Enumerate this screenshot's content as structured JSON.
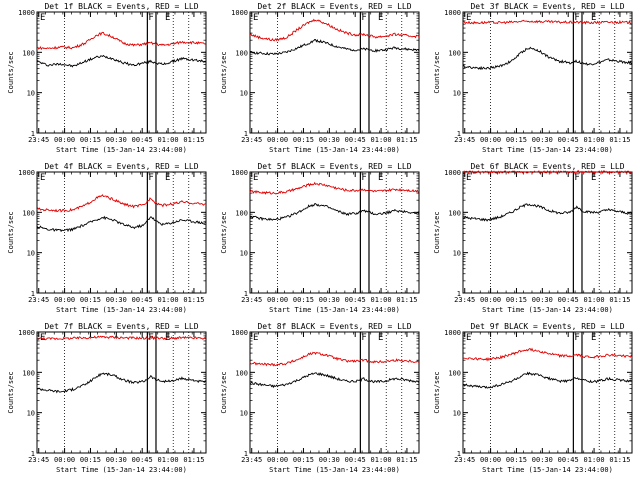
{
  "colors": {
    "events": "#000000",
    "lld": "#e00000",
    "background": "#ffffff"
  },
  "chart_data": [
    {
      "type": "line",
      "title": "Det 1f BLACK = Events, RED = LLD",
      "xlabel": "Start Time (15-Jan-14 23:44:00)",
      "ylabel": "Counts/sec",
      "yscale": "log",
      "ylim": [
        1,
        1000
      ],
      "xlim": [
        "23:44",
        "01:22"
      ],
      "x_ticks": [
        "23:45",
        "00:00",
        "00:15",
        "00:30",
        "00:45",
        "01:00",
        "01:15"
      ],
      "y_ticks": [
        "1",
        "10",
        "100",
        "1000"
      ],
      "annotations": [
        "E",
        "F",
        "E"
      ],
      "series": [
        {
          "name": "Events",
          "x": [
            "23:44",
            "23:50",
            "23:58",
            "00:05",
            "00:12",
            "00:18",
            "00:22",
            "00:28",
            "00:34",
            "00:40",
            "00:46",
            "00:50",
            "00:53",
            "00:57",
            "01:02",
            "01:08",
            "01:14",
            "01:20"
          ],
          "values": [
            60,
            48,
            52,
            45,
            60,
            75,
            80,
            70,
            55,
            48,
            55,
            60,
            55,
            50,
            58,
            70,
            65,
            60
          ]
        },
        {
          "name": "LLD",
          "x": [
            "23:44",
            "23:50",
            "23:58",
            "00:05",
            "00:12",
            "00:18",
            "00:22",
            "00:28",
            "00:34",
            "00:40",
            "00:46",
            "00:50",
            "00:53",
            "00:57",
            "01:02",
            "01:08",
            "01:14",
            "01:20"
          ],
          "values": [
            130,
            125,
            135,
            130,
            170,
            260,
            300,
            240,
            170,
            150,
            160,
            170,
            160,
            150,
            160,
            180,
            175,
            165
          ]
        }
      ]
    },
    {
      "type": "line",
      "title": "Det 2f BLACK = Events, RED = LLD",
      "xlabel": "Start Time (15-Jan-14 23:44:00)",
      "ylabel": "Counts/sec",
      "yscale": "log",
      "ylim": [
        1,
        1000
      ],
      "xlim": [
        "23:44",
        "01:22"
      ],
      "x_ticks": [
        "23:45",
        "00:00",
        "00:15",
        "00:30",
        "00:45",
        "01:00",
        "01:15"
      ],
      "y_ticks": [
        "1",
        "10",
        "100",
        "1000"
      ],
      "annotations": [
        "E",
        "F",
        "E"
      ],
      "series": [
        {
          "name": "Events",
          "x": [
            "23:44",
            "23:50",
            "23:58",
            "00:05",
            "00:12",
            "00:18",
            "00:22",
            "00:28",
            "00:34",
            "00:40",
            "00:46",
            "00:50",
            "00:53",
            "00:57",
            "01:02",
            "01:08",
            "01:14",
            "01:20"
          ],
          "values": [
            100,
            95,
            90,
            100,
            130,
            170,
            200,
            170,
            140,
            120,
            115,
            120,
            115,
            110,
            115,
            130,
            120,
            115
          ]
        },
        {
          "name": "LLD",
          "x": [
            "23:44",
            "23:50",
            "23:58",
            "00:05",
            "00:12",
            "00:18",
            "00:22",
            "00:28",
            "00:34",
            "00:40",
            "00:46",
            "00:50",
            "00:53",
            "00:57",
            "01:02",
            "01:08",
            "01:14",
            "01:20"
          ],
          "values": [
            280,
            230,
            200,
            230,
            380,
            550,
            650,
            520,
            380,
            300,
            270,
            280,
            260,
            240,
            250,
            280,
            260,
            250
          ]
        }
      ]
    },
    {
      "type": "line",
      "title": "Det 3f BLACK = Events, RED = LLD",
      "xlabel": "Start Time (15-Jan-14 23:44:00)",
      "ylabel": "Counts/sec",
      "yscale": "log",
      "ylim": [
        1,
        1000
      ],
      "xlim": [
        "23:44",
        "01:22"
      ],
      "x_ticks": [
        "23:45",
        "00:00",
        "00:15",
        "00:30",
        "00:45",
        "01:00",
        "01:15"
      ],
      "y_ticks": [
        "1",
        "10",
        "100",
        "1000"
      ],
      "annotations": [
        "E",
        "F",
        "E"
      ],
      "series": [
        {
          "name": "Events",
          "x": [
            "23:44",
            "23:50",
            "23:58",
            "00:05",
            "00:12",
            "00:18",
            "00:22",
            "00:28",
            "00:34",
            "00:40",
            "00:46",
            "00:50",
            "00:53",
            "00:57",
            "01:02",
            "01:08",
            "01:14",
            "01:20"
          ],
          "values": [
            45,
            42,
            40,
            45,
            60,
            100,
            130,
            110,
            75,
            60,
            55,
            60,
            55,
            50,
            55,
            65,
            60,
            55
          ]
        },
        {
          "name": "LLD",
          "x": [
            "23:44",
            "23:50",
            "23:58",
            "00:05",
            "00:12",
            "00:18",
            "00:22",
            "00:28",
            "00:34",
            "00:40",
            "00:46",
            "00:50",
            "00:53",
            "00:57",
            "01:02",
            "01:08",
            "01:14",
            "01:20"
          ],
          "values": [
            560,
            540,
            550,
            545,
            560,
            580,
            590,
            580,
            570,
            560,
            555,
            560,
            550,
            545,
            550,
            560,
            555,
            550
          ]
        }
      ]
    },
    {
      "type": "line",
      "title": "Det 4f BLACK = Events, RED = LLD",
      "xlabel": "Start Time (15-Jan-14 23:44:00)",
      "ylabel": "Counts/sec",
      "yscale": "log",
      "ylim": [
        1,
        1000
      ],
      "xlim": [
        "23:44",
        "01:22"
      ],
      "x_ticks": [
        "23:45",
        "00:00",
        "00:15",
        "00:30",
        "00:45",
        "01:00",
        "01:15"
      ],
      "y_ticks": [
        "1",
        "10",
        "100",
        "1000"
      ],
      "annotations": [
        "E",
        "F",
        "E"
      ],
      "series": [
        {
          "name": "Events",
          "x": [
            "23:44",
            "23:50",
            "23:58",
            "00:05",
            "00:12",
            "00:18",
            "00:22",
            "00:28",
            "00:34",
            "00:40",
            "00:46",
            "00:50",
            "00:53",
            "00:57",
            "01:02",
            "01:08",
            "01:14",
            "01:20"
          ],
          "values": [
            45,
            38,
            35,
            38,
            50,
            65,
            75,
            65,
            50,
            42,
            48,
            80,
            60,
            50,
            55,
            65,
            60,
            55
          ]
        },
        {
          "name": "LLD",
          "x": [
            "23:44",
            "23:50",
            "23:58",
            "00:05",
            "00:12",
            "00:18",
            "00:22",
            "00:28",
            "00:34",
            "00:40",
            "00:46",
            "00:50",
            "00:53",
            "00:57",
            "01:02",
            "01:08",
            "01:14",
            "01:20"
          ],
          "values": [
            120,
            115,
            110,
            115,
            150,
            220,
            260,
            210,
            160,
            140,
            150,
            230,
            170,
            150,
            160,
            180,
            170,
            160
          ]
        }
      ]
    },
    {
      "type": "line",
      "title": "Det 5f BLACK = Events, RED = LLD",
      "xlabel": "Start Time (15-Jan-14 23:44:00)",
      "ylabel": "Counts/sec",
      "yscale": "log",
      "ylim": [
        1,
        1000
      ],
      "xlim": [
        "23:44",
        "01:22"
      ],
      "x_ticks": [
        "23:45",
        "00:00",
        "00:15",
        "00:30",
        "00:45",
        "01:00",
        "01:15"
      ],
      "y_ticks": [
        "1",
        "10",
        "100",
        "1000"
      ],
      "annotations": [
        "E",
        "F",
        "E"
      ],
      "series": [
        {
          "name": "Events",
          "x": [
            "23:44",
            "23:50",
            "23:58",
            "00:05",
            "00:12",
            "00:18",
            "00:22",
            "00:28",
            "00:34",
            "00:40",
            "00:46",
            "00:50",
            "00:53",
            "00:57",
            "01:02",
            "01:08",
            "01:14",
            "01:20"
          ],
          "values": [
            80,
            70,
            65,
            75,
            100,
            140,
            160,
            140,
            110,
            90,
            95,
            110,
            100,
            90,
            95,
            110,
            105,
            95
          ]
        },
        {
          "name": "LLD",
          "x": [
            "23:44",
            "23:50",
            "23:58",
            "00:05",
            "00:12",
            "00:18",
            "00:22",
            "00:28",
            "00:34",
            "00:40",
            "00:46",
            "00:50",
            "00:53",
            "00:57",
            "01:02",
            "01:08",
            "01:14",
            "01:20"
          ],
          "values": [
            330,
            310,
            300,
            320,
            390,
            480,
            520,
            470,
            400,
            350,
            350,
            370,
            350,
            330,
            340,
            370,
            360,
            340
          ]
        }
      ]
    },
    {
      "type": "line",
      "title": "Det 6f BLACK = Events, RED = LLD",
      "xlabel": "Start Time (15-Jan-14 23:44:00)",
      "ylabel": "Counts/sec",
      "yscale": "log",
      "ylim": [
        1,
        1000
      ],
      "xlim": [
        "23:44",
        "01:22"
      ],
      "x_ticks": [
        "23:45",
        "00:00",
        "00:15",
        "00:30",
        "00:45",
        "01:00",
        "01:15"
      ],
      "y_ticks": [
        "1",
        "10",
        "100",
        "1000"
      ],
      "annotations": [
        "E",
        "F",
        "E"
      ],
      "series": [
        {
          "name": "Events",
          "x": [
            "23:44",
            "23:50",
            "23:58",
            "00:05",
            "00:12",
            "00:18",
            "00:22",
            "00:28",
            "00:34",
            "00:40",
            "00:46",
            "00:50",
            "00:53",
            "00:57",
            "01:02",
            "01:08",
            "01:14",
            "01:20"
          ],
          "values": [
            75,
            70,
            65,
            75,
            100,
            140,
            160,
            140,
            110,
            95,
            100,
            140,
            110,
            100,
            100,
            115,
            105,
            95
          ]
        },
        {
          "name": "LLD",
          "x": [
            "23:44",
            "23:50",
            "23:58",
            "00:05",
            "00:12",
            "00:18",
            "00:22",
            "00:28",
            "00:34",
            "00:40",
            "00:46",
            "00:50",
            "00:53",
            "00:57",
            "01:02",
            "01:08",
            "01:14",
            "01:20"
          ],
          "values": [
            1000,
            995,
            990,
            995,
            1000,
            1000,
            1000,
            1000,
            995,
            990,
            995,
            1000,
            995,
            990,
            995,
            1000,
            995,
            990
          ]
        }
      ]
    },
    {
      "type": "line",
      "title": "Det 7f BLACK = Events, RED = LLD",
      "xlabel": "Start Time (15-Jan-14 23:44:00)",
      "ylabel": "Counts/sec",
      "yscale": "log",
      "ylim": [
        1,
        1000
      ],
      "xlim": [
        "23:44",
        "01:22"
      ],
      "x_ticks": [
        "23:45",
        "00:00",
        "00:15",
        "00:30",
        "00:45",
        "01:00",
        "01:15"
      ],
      "y_ticks": [
        "1",
        "10",
        "100",
        "1000"
      ],
      "annotations": [
        "E",
        "F",
        "E"
      ],
      "series": [
        {
          "name": "Events",
          "x": [
            "23:44",
            "23:50",
            "23:58",
            "00:05",
            "00:12",
            "00:18",
            "00:22",
            "00:28",
            "00:34",
            "00:40",
            "00:46",
            "00:50",
            "00:53",
            "00:57",
            "01:02",
            "01:08",
            "01:14",
            "01:20"
          ],
          "values": [
            40,
            36,
            33,
            38,
            50,
            75,
            95,
            85,
            65,
            55,
            60,
            80,
            65,
            60,
            60,
            70,
            65,
            58
          ]
        },
        {
          "name": "LLD",
          "x": [
            "23:44",
            "23:50",
            "23:58",
            "00:05",
            "00:12",
            "00:18",
            "00:22",
            "00:28",
            "00:34",
            "00:40",
            "00:46",
            "00:50",
            "00:53",
            "00:57",
            "01:02",
            "01:08",
            "01:14",
            "01:20"
          ],
          "values": [
            700,
            680,
            690,
            700,
            720,
            740,
            750,
            740,
            720,
            710,
            700,
            720,
            710,
            700,
            700,
            720,
            710,
            700
          ]
        }
      ]
    },
    {
      "type": "line",
      "title": "Det 8f BLACK = Events, RED = LLD",
      "xlabel": "Start Time (15-Jan-14 23:44:00)",
      "ylabel": "Counts/sec",
      "yscale": "log",
      "ylim": [
        1,
        1000
      ],
      "xlim": [
        "23:44",
        "01:22"
      ],
      "x_ticks": [
        "23:45",
        "00:00",
        "00:15",
        "00:30",
        "00:45",
        "01:00",
        "01:15"
      ],
      "y_ticks": [
        "1",
        "10",
        "100",
        "1000"
      ],
      "annotations": [
        "E",
        "F",
        "E"
      ],
      "series": [
        {
          "name": "Events",
          "x": [
            "23:44",
            "23:50",
            "23:58",
            "00:05",
            "00:12",
            "00:18",
            "00:22",
            "00:28",
            "00:34",
            "00:40",
            "00:46",
            "00:50",
            "00:53",
            "00:57",
            "01:02",
            "01:08",
            "01:14",
            "01:20"
          ],
          "values": [
            55,
            50,
            45,
            50,
            65,
            85,
            95,
            85,
            70,
            60,
            60,
            70,
            62,
            58,
            60,
            70,
            65,
            60
          ]
        },
        {
          "name": "LLD",
          "x": [
            "23:44",
            "23:50",
            "23:58",
            "00:05",
            "00:12",
            "00:18",
            "00:22",
            "00:28",
            "00:34",
            "00:40",
            "00:46",
            "00:50",
            "00:53",
            "00:57",
            "01:02",
            "01:08",
            "01:14",
            "01:20"
          ],
          "values": [
            170,
            160,
            155,
            165,
            210,
            280,
            300,
            270,
            220,
            190,
            190,
            200,
            190,
            180,
            185,
            200,
            195,
            185
          ]
        }
      ]
    },
    {
      "type": "line",
      "title": "Det 9f BLACK = Events, RED = LLD",
      "xlabel": "Start Time (15-Jan-14 23:44:00)",
      "ylabel": "Counts/sec",
      "yscale": "log",
      "ylim": [
        1,
        1000
      ],
      "xlim": [
        "23:44",
        "01:22"
      ],
      "x_ticks": [
        "23:45",
        "00:00",
        "00:15",
        "00:30",
        "00:45",
        "01:00",
        "01:15"
      ],
      "y_ticks": [
        "1",
        "10",
        "100",
        "1000"
      ],
      "annotations": [
        "E",
        "F",
        "E"
      ],
      "series": [
        {
          "name": "Events",
          "x": [
            "23:44",
            "23:50",
            "23:58",
            "00:05",
            "00:12",
            "00:18",
            "00:22",
            "00:28",
            "00:34",
            "00:40",
            "00:46",
            "00:50",
            "00:53",
            "00:57",
            "01:02",
            "01:08",
            "01:14",
            "01:20"
          ],
          "values": [
            50,
            45,
            42,
            48,
            60,
            80,
            95,
            85,
            70,
            60,
            62,
            75,
            65,
            60,
            60,
            70,
            65,
            60
          ]
        },
        {
          "name": "LLD",
          "x": [
            "23:44",
            "23:50",
            "23:58",
            "00:05",
            "00:12",
            "00:18",
            "00:22",
            "00:28",
            "00:34",
            "00:40",
            "00:46",
            "00:50",
            "00:53",
            "00:57",
            "01:02",
            "01:08",
            "01:14",
            "01:20"
          ],
          "values": [
            230,
            220,
            210,
            230,
            280,
            340,
            370,
            340,
            290,
            260,
            250,
            270,
            255,
            240,
            245,
            270,
            260,
            250
          ]
        }
      ]
    }
  ]
}
